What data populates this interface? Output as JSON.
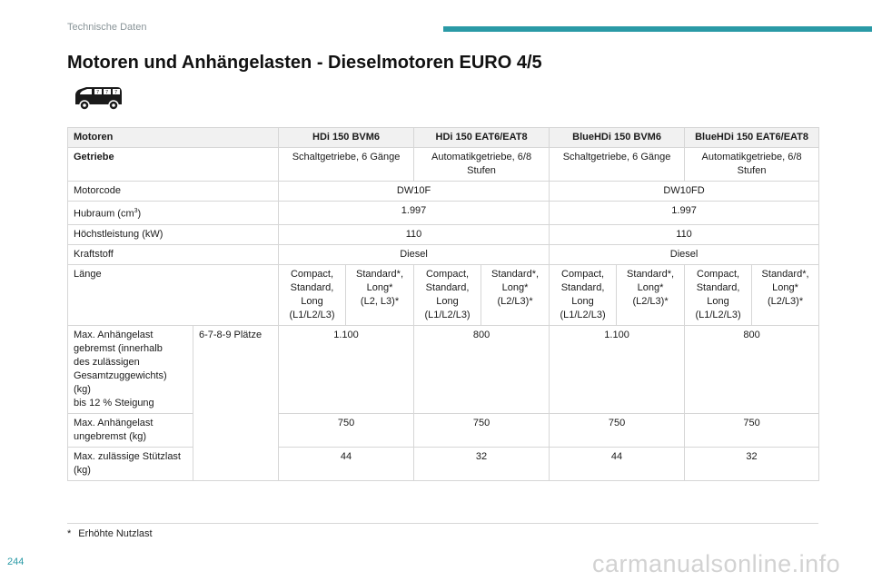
{
  "header": {
    "section": "Technische Daten",
    "accent_color": "#2a9aa6"
  },
  "title": "Motoren und Anhängelasten - Dieselmotoren EURO 4/5",
  "table": {
    "header_row": {
      "label": "Motoren",
      "engines": [
        "HDi 150 BVM6",
        "HDi 150 EAT6/EAT8",
        "BlueHDi 150 BVM6",
        "BlueHDi 150 EAT6/EAT8"
      ]
    },
    "getriebe": {
      "label": "Getriebe",
      "values": [
        "Schaltgetriebe, 6 Gänge",
        "Automatikgetriebe, 6/8 Stufen",
        "Schaltgetriebe, 6 Gänge",
        "Automatikgetriebe, 6/8 Stufen"
      ]
    },
    "motorcode": {
      "label": "Motorcode",
      "values": [
        "DW10F",
        "DW10FD"
      ]
    },
    "hubraum": {
      "label_main": "Hubraum (cm",
      "label_sup": "3",
      "label_end": ")",
      "values": [
        "1.997",
        "1.997"
      ]
    },
    "leistung": {
      "label": "Höchstleistung (kW)",
      "values": [
        "110",
        "110"
      ]
    },
    "kraftstoff": {
      "label": "Kraftstoff",
      "values": [
        "Diesel",
        "Diesel"
      ]
    },
    "laenge": {
      "label": "Länge",
      "values": [
        "Compact,\nStandard,\nLong\n(L1/L2/L3)",
        "Standard*,\nLong*\n(L2, L3)*",
        "Compact,\nStandard,\nLong\n(L1/L2/L3)",
        "Standard*,\nLong*\n(L2/L3)*",
        "Compact,\nStandard,\nLong\n(L1/L2/L3)",
        "Standard*,\nLong*\n(L2/L3)*",
        "Compact,\nStandard,\nLong\n(L1/L2/L3)",
        "Standard*,\nLong*\n(L2/L3)*"
      ]
    },
    "seats_label": "6-7-8-9 Plätze",
    "gebremst": {
      "label": "Max. Anhängelast\ngebremst (innerhalb\ndes zulässigen\nGesamtzuggewichts)\n(kg)\nbis 12 % Steigung",
      "values": [
        "1.100",
        "800",
        "1.100",
        "800"
      ]
    },
    "ungebremst": {
      "label": "Max. Anhängelast\nungebremst (kg)",
      "values": [
        "750",
        "750",
        "750",
        "750"
      ]
    },
    "stuetzlast": {
      "label": "Max. zulässige Stützlast\n(kg)",
      "values": [
        "44",
        "32",
        "44",
        "32"
      ]
    }
  },
  "footnote": {
    "marker": "*",
    "text": "Erhöhte Nutzlast"
  },
  "page_number": "244",
  "watermark": "carmanualsonline.info",
  "icons": {
    "vehicle": "van-icon"
  }
}
